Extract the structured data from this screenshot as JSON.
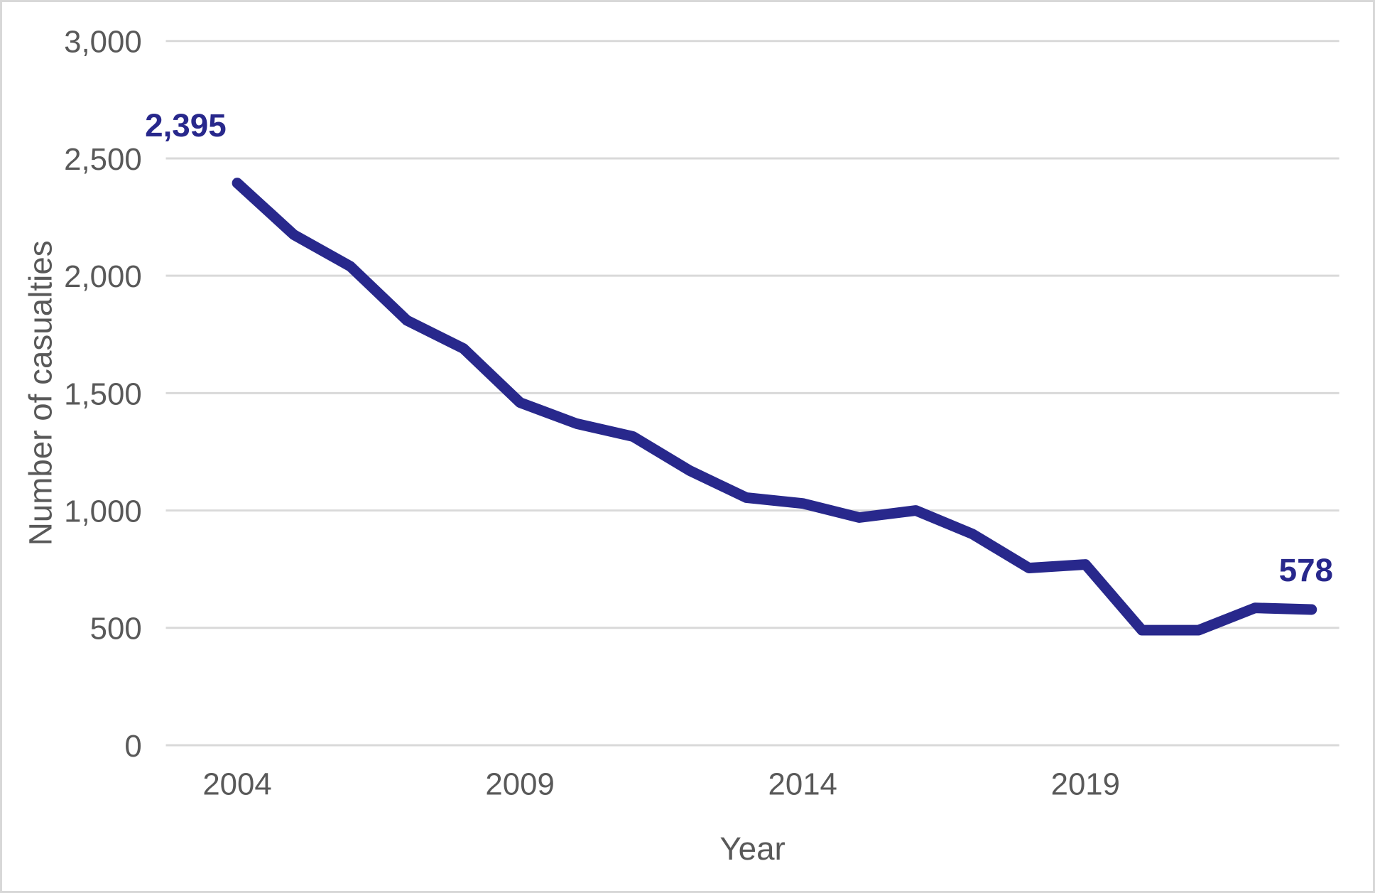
{
  "chart_data": {
    "type": "line",
    "title": "",
    "xlabel": "Year",
    "ylabel": "Number of casualties",
    "x": [
      2004,
      2005,
      2006,
      2007,
      2008,
      2009,
      2010,
      2011,
      2012,
      2013,
      2014,
      2015,
      2016,
      2017,
      2018,
      2019,
      2020,
      2021,
      2022,
      2023
    ],
    "values": [
      2395,
      2175,
      2040,
      1810,
      1690,
      1460,
      1370,
      1315,
      1170,
      1055,
      1030,
      970,
      1000,
      900,
      755,
      770,
      490,
      490,
      585,
      578
    ],
    "series_name": "Number of casualties",
    "ylim": [
      0,
      3000
    ],
    "ytick_step": 500,
    "yticks": [
      0,
      500,
      1000,
      1500,
      2000,
      2500,
      3000
    ],
    "xticks": [
      2004,
      2009,
      2014,
      2019
    ],
    "grid": "horizontal",
    "legend": "none",
    "point_labels": [
      {
        "year": 2004,
        "label": "2,395",
        "position": "above-left"
      },
      {
        "year": 2023,
        "label": "578",
        "position": "above"
      }
    ],
    "colors": {
      "line": "#28288c",
      "data_label": "#28288c",
      "axis_text": "#595959",
      "gridline": "#d9d9d9",
      "background": "#ffffff",
      "frame_border": "#d8d8d8"
    }
  }
}
